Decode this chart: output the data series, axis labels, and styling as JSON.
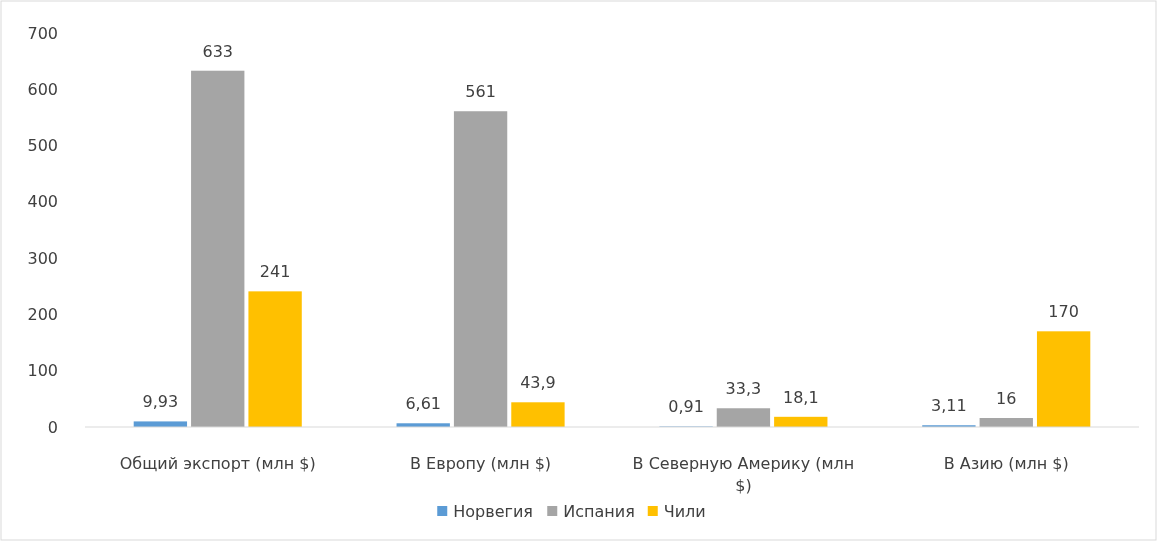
{
  "chart_data": {
    "type": "bar",
    "categories": [
      "Общий экспорт (млн $)",
      "В Европу (млн $)",
      "В Северную Америку (млн $)",
      "В Азию (млн $)"
    ],
    "series": [
      {
        "name": "Норвегия",
        "color": "#5b9bd5",
        "values": [
          9.93,
          6.61,
          0.91,
          3.11
        ],
        "value_labels": [
          "9,93",
          "6,61",
          "0,91",
          "3,11"
        ]
      },
      {
        "name": "Испания",
        "color": "#a5a5a5",
        "values": [
          633,
          561,
          33.3,
          16
        ],
        "value_labels": [
          "633",
          "561",
          "33,3",
          "16"
        ]
      },
      {
        "name": "Чили",
        "color": "#ffc000",
        "values": [
          241,
          43.9,
          18.1,
          170
        ],
        "value_labels": [
          "241",
          "43,9",
          "18,1",
          "170"
        ]
      }
    ],
    "ylim": [
      0,
      700
    ],
    "yticks": [
      0,
      100,
      200,
      300,
      400,
      500,
      600,
      700
    ],
    "grid": false,
    "legend": "bottom"
  }
}
